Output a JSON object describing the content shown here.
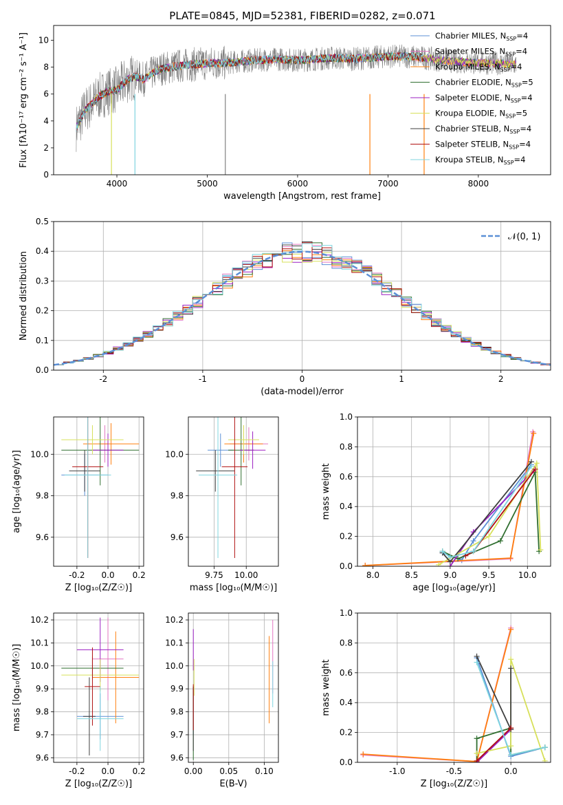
{
  "figure_title": "PLATE=0845, MJD=52381, FIBERID=0282, z=0.071",
  "colors": {
    "chabrier_miles": "#5b8fd6",
    "salpeter_miles": "#e377c2",
    "kroupa_miles": "#ff7f0e",
    "chabrier_elodie": "#2f6e2f",
    "salpeter_elodie": "#9b1fc2",
    "kroupa_elodie": "#d7e05a",
    "chabrier_stelib": "#3f3f3f",
    "salpeter_stelib": "#b01010",
    "kroupa_stelib": "#7fd5df",
    "data": "#808080",
    "normal": "#5b8fd6"
  },
  "chart_data": [
    {
      "type": "line",
      "id": "spectrum",
      "title": "PLATE=0845, MJD=52381, FIBERID=0282, z=0.071",
      "xlabel": "wavelength [Angstrom, rest frame]",
      "ylabel": "Flux [fλ10⁻¹⁷ erg cm⁻² s⁻¹ A⁻¹]",
      "xlim": [
        3300,
        8800
      ],
      "ylim": [
        0,
        11.1
      ],
      "xticks": [
        4000,
        5000,
        6000,
        7000,
        8000
      ],
      "yticks": [
        0,
        2,
        4,
        6,
        8,
        10
      ],
      "legend_position": "right",
      "legend": [
        {
          "label": "Chabrier MILES, N",
          "sub": "SSP",
          "tail": "=4",
          "color_key": "chabrier_miles"
        },
        {
          "label": "Salpeter MILES, N",
          "sub": "SSP",
          "tail": "=4",
          "color_key": "salpeter_miles"
        },
        {
          "label": "Kroupa MILES, N",
          "sub": "SSP",
          "tail": "=4",
          "color_key": "kroupa_miles"
        },
        {
          "label": "Chabrier ELODIE, N",
          "sub": "SSP",
          "tail": "=5",
          "color_key": "chabrier_elodie"
        },
        {
          "label": "Salpeter ELODIE, N",
          "sub": "SSP",
          "tail": "=4",
          "color_key": "salpeter_elodie"
        },
        {
          "label": "Kroupa ELODIE, N",
          "sub": "SSP",
          "tail": "=5",
          "color_key": "kroupa_elodie"
        },
        {
          "label": "Chabrier STELIB, N",
          "sub": "SSP",
          "tail": "=4",
          "color_key": "chabrier_stelib"
        },
        {
          "label": "Salpeter STELIB, N",
          "sub": "SSP",
          "tail": "=4",
          "color_key": "salpeter_stelib"
        },
        {
          "label": "Kroupa STELIB, N",
          "sub": "SSP",
          "tail": "=4",
          "color_key": "kroupa_stelib"
        }
      ],
      "continuum": [
        [
          3550,
          3.5
        ],
        [
          3650,
          4.8
        ],
        [
          3800,
          5.8
        ],
        [
          3900,
          6.2
        ],
        [
          4000,
          6.3
        ],
        [
          4100,
          7.0
        ],
        [
          4200,
          7.3
        ],
        [
          4300,
          7.1
        ],
        [
          4400,
          7.6
        ],
        [
          4500,
          7.9
        ],
        [
          4700,
          8.1
        ],
        [
          5000,
          8.3
        ],
        [
          5200,
          8.3
        ],
        [
          5500,
          8.5
        ],
        [
          5800,
          8.6
        ],
        [
          6000,
          8.5
        ],
        [
          6200,
          8.6
        ],
        [
          6400,
          8.7
        ],
        [
          6600,
          8.6
        ],
        [
          6800,
          8.7
        ],
        [
          7000,
          8.8
        ],
        [
          7200,
          8.8
        ],
        [
          7400,
          8.7
        ],
        [
          7600,
          8.5
        ],
        [
          7800,
          8.4
        ],
        [
          8000,
          8.3
        ],
        [
          8200,
          8.3
        ],
        [
          8400,
          8.2
        ]
      ],
      "model_span": [
        3550,
        7400
      ],
      "model_end_drop": {
        "kroupa_miles": 6800,
        "kroupa_stelib": 4200
      }
    },
    {
      "type": "line",
      "id": "residual_histogram",
      "xlabel": "(data-model)/error",
      "ylabel": "Normed distribution",
      "xlim": [
        -2.5,
        2.5
      ],
      "ylim": [
        0,
        0.5
      ],
      "xticks": [
        -2,
        -1,
        0,
        1,
        2
      ],
      "yticks": [
        0,
        0.1,
        0.2,
        0.3,
        0.4,
        0.5
      ],
      "grid": true,
      "legend": [
        {
          "label": "𝒩(0, 1)",
          "color_key": "normal",
          "style": "dashed"
        }
      ],
      "legend_position": "top-right",
      "bin_width": 0.1
    },
    {
      "type": "scatter",
      "id": "age_vs_Z",
      "xlabel": "Z [log₁₀(Z/Z☉)]",
      "ylabel": "age  [log₁₀(age/yr)]",
      "xlim": [
        -0.35,
        0.23
      ],
      "ylim": [
        9.46,
        10.18
      ],
      "xticks": [
        -0.2,
        0.0,
        0.2
      ],
      "yticks": [
        9.6,
        9.8,
        10.0
      ],
      "grid": true,
      "points": [
        {
          "c": "chabrier_miles",
          "x": -0.15,
          "xe": 0.15,
          "y": 9.9,
          "ye": 0.1
        },
        {
          "c": "salpeter_miles",
          "x": -0.02,
          "xe": 0.02,
          "y": 10.05,
          "ye": 0.09
        },
        {
          "c": "kroupa_miles",
          "x": 0.02,
          "xe": 0.18,
          "y": 10.05,
          "ye": 0.1
        },
        {
          "c": "chabrier_elodie",
          "x": -0.05,
          "xe": 0.25,
          "y": 10.02,
          "ye": 0.17
        },
        {
          "c": "salpeter_elodie",
          "x": 0.0,
          "xe": 0.1,
          "y": 10.02,
          "ye": 0.08
        },
        {
          "c": "kroupa_elodie",
          "x": -0.1,
          "xe": 0.2,
          "y": 10.07,
          "ye": 0.07
        },
        {
          "c": "chabrier_stelib",
          "x": -0.15,
          "xe": 0.1,
          "y": 9.92,
          "ye": 0.1
        },
        {
          "c": "salpeter_stelib",
          "x": -0.13,
          "xe": 0.1,
          "y": 9.94,
          "ye": 0.44
        },
        {
          "c": "kroupa_stelib",
          "x": -0.13,
          "xe": 0.15,
          "y": 9.9,
          "ye": 0.4
        }
      ]
    },
    {
      "type": "scatter",
      "id": "age_vs_mass",
      "xlabel": "mass [log₁₀(M/M☉)]",
      "ylabel": "",
      "xlim": [
        9.55,
        10.25
      ],
      "ylim": [
        9.46,
        10.18
      ],
      "xticks": [
        9.75,
        10.0
      ],
      "yticks": [
        9.6,
        9.8,
        10.0
      ],
      "grid": true,
      "points": [
        {
          "c": "chabrier_miles",
          "x": 9.8,
          "xe": 0.1,
          "y": 10.02,
          "ye": 0.08
        },
        {
          "c": "salpeter_miles",
          "x": 10.02,
          "xe": 0.15,
          "y": 10.05,
          "ye": 0.08
        },
        {
          "c": "kroupa_miles",
          "x": 9.98,
          "xe": 0.15,
          "y": 10.05,
          "ye": 0.09
        },
        {
          "c": "chabrier_elodie",
          "x": 9.96,
          "xe": 0.1,
          "y": 10.02,
          "ye": 0.17
        },
        {
          "c": "salpeter_elodie",
          "x": 10.05,
          "xe": 0.1,
          "y": 10.02,
          "ye": 0.09
        },
        {
          "c": "kroupa_elodie",
          "x": 9.98,
          "xe": 0.12,
          "y": 10.07,
          "ye": 0.07
        },
        {
          "c": "chabrier_stelib",
          "x": 9.76,
          "xe": 0.15,
          "y": 9.92,
          "ye": 0.1
        },
        {
          "c": "salpeter_stelib",
          "x": 9.91,
          "xe": 0.1,
          "y": 9.94,
          "ye": 0.44
        },
        {
          "c": "kroupa_stelib",
          "x": 9.78,
          "xe": 0.15,
          "y": 9.9,
          "ye": 0.4
        }
      ]
    },
    {
      "type": "line",
      "id": "massweight_vs_age",
      "xlabel": "age  [log₁₀(age/yr)]",
      "ylabel": "mass weight",
      "xlim": [
        7.8,
        10.3
      ],
      "ylim": [
        0,
        1.0
      ],
      "xticks": [
        8.0,
        8.5,
        9.0,
        9.5,
        10.0
      ],
      "yticks": [
        0.0,
        0.2,
        0.4,
        0.6,
        0.8,
        1.0
      ],
      "grid": true,
      "series": [
        {
          "c": "chabrier_miles",
          "x": [
            8.9,
            9.15,
            9.3,
            10.05
          ],
          "y": [
            0.09,
            0.04,
            0.17,
            0.68
          ]
        },
        {
          "c": "salpeter_miles",
          "x": [
            7.9,
            9.78,
            10.07
          ],
          "y": [
            0.005,
            0.05,
            0.9
          ]
        },
        {
          "c": "kroupa_miles",
          "x": [
            7.9,
            9.78,
            10.08
          ],
          "y": [
            0.005,
            0.055,
            0.89
          ]
        },
        {
          "c": "chabrier_elodie",
          "x": [
            8.9,
            9.1,
            9.65,
            10.1,
            10.15
          ],
          "y": [
            0.1,
            0.05,
            0.17,
            0.63,
            0.1
          ]
        },
        {
          "c": "salpeter_elodie",
          "x": [
            9.0,
            9.3,
            10.08
          ],
          "y": [
            0.0,
            0.23,
            0.64
          ]
        },
        {
          "c": "kroupa_elodie",
          "x": [
            8.85,
            9.5,
            10.12,
            10.17
          ],
          "y": [
            0.01,
            0.2,
            0.69,
            0.11
          ]
        },
        {
          "c": "chabrier_stelib",
          "x": [
            8.9,
            9.0,
            10.05
          ],
          "y": [
            0.09,
            0.03,
            0.7
          ]
        },
        {
          "c": "salpeter_stelib",
          "x": [
            9.2,
            9.3,
            10.1
          ],
          "y": [
            0.07,
            0.1,
            0.65
          ]
        },
        {
          "c": "kroupa_stelib",
          "x": [
            8.9,
            9.0,
            9.3,
            10.05
          ],
          "y": [
            0.1,
            0.06,
            0.1,
            0.67
          ]
        }
      ]
    },
    {
      "type": "scatter",
      "id": "mass_vs_Z",
      "xlabel": "Z [log₁₀(Z/Z☉)]",
      "ylabel": "mass [log₁₀(M/M☉)]",
      "xlim": [
        -0.35,
        0.23
      ],
      "ylim": [
        9.58,
        10.23
      ],
      "xticks": [
        -0.2,
        0.0,
        0.2
      ],
      "yticks": [
        9.6,
        9.7,
        9.8,
        9.9,
        10.0,
        10.1,
        10.2
      ],
      "grid": true,
      "points": [
        {
          "c": "chabrier_miles",
          "x": -0.05,
          "xe": 0.15,
          "y": 9.78,
          "ye": 0.1
        },
        {
          "c": "salpeter_miles",
          "x": 0.0,
          "xe": 0.1,
          "y": 10.03,
          "ye": 0.18
        },
        {
          "c": "kroupa_miles",
          "x": 0.05,
          "xe": 0.15,
          "y": 9.95,
          "ye": 0.2
        },
        {
          "c": "chabrier_elodie",
          "x": -0.1,
          "xe": 0.2,
          "y": 9.99,
          "ye": 0.05
        },
        {
          "c": "salpeter_elodie",
          "x": -0.05,
          "xe": 0.15,
          "y": 10.07,
          "ye": 0.14
        },
        {
          "c": "kroupa_elodie",
          "x": -0.05,
          "xe": 0.25,
          "y": 9.96,
          "ye": 0.07
        },
        {
          "c": "chabrier_stelib",
          "x": -0.12,
          "xe": 0.04,
          "y": 9.78,
          "ye": 0.17
        },
        {
          "c": "salpeter_stelib",
          "x": -0.1,
          "xe": 0.05,
          "y": 9.91,
          "ye": 0.17
        },
        {
          "c": "kroupa_stelib",
          "x": -0.05,
          "xe": 0.15,
          "y": 9.77,
          "ye": 0.14
        }
      ]
    },
    {
      "type": "scatter",
      "id": "mass_vs_EBV",
      "xlabel": "E(B-V)",
      "ylabel": "",
      "xlim": [
        -0.007,
        0.12
      ],
      "ylim": [
        9.58,
        10.23
      ],
      "xticks": [
        0.0,
        0.05,
        0.1
      ],
      "yticks": [
        9.6,
        9.7,
        9.8,
        9.9,
        10.0,
        10.1,
        10.2
      ],
      "grid": true,
      "points": [
        {
          "c": "chabrier_miles",
          "x": 0.0,
          "y": 9.8,
          "ye": 0.1
        },
        {
          "c": "salpeter_miles",
          "x": 0.112,
          "y": 10.04,
          "ye": 0.16
        },
        {
          "c": "kroupa_miles",
          "x": 0.107,
          "y": 9.94,
          "ye": 0.19
        },
        {
          "c": "chabrier_elodie",
          "x": 0.0,
          "y": 9.75,
          "ye": 0.16
        },
        {
          "c": "salpeter_elodie",
          "x": 0.0,
          "y": 10.07,
          "ye": 0.09
        },
        {
          "c": "kroupa_elodie",
          "x": 0.001,
          "y": 9.95,
          "ye": 0.08
        },
        {
          "c": "chabrier_stelib",
          "x": 0.0,
          "y": 9.77,
          "ye": 0.14
        },
        {
          "c": "salpeter_stelib",
          "x": 0.0,
          "y": 9.82,
          "ye": 0.1
        },
        {
          "c": "kroupa_stelib",
          "x": 0.112,
          "y": 9.92,
          "ye": 0.1
        }
      ]
    },
    {
      "type": "line",
      "id": "massweight_vs_Z",
      "xlabel": "Z [log₁₀(Z/Z☉)]",
      "ylabel": "mass weight",
      "xlim": [
        -1.35,
        0.35
      ],
      "ylim": [
        0,
        1.0
      ],
      "xticks": [
        -1.0,
        -0.5,
        0.0
      ],
      "yticks": [
        0.0,
        0.2,
        0.4,
        0.6,
        0.8,
        1.0
      ],
      "grid": true,
      "series": [
        {
          "c": "chabrier_miles",
          "x": [
            -0.3,
            0.0,
            0.3
          ],
          "y": [
            0.7,
            0.04,
            0.1
          ]
        },
        {
          "c": "salpeter_miles",
          "x": [
            -1.3,
            -0.3,
            0.0
          ],
          "y": [
            0.05,
            0.005,
            0.9
          ]
        },
        {
          "c": "kroupa_miles",
          "x": [
            -1.3,
            -0.3,
            0.0
          ],
          "y": [
            0.055,
            0.005,
            0.89
          ]
        },
        {
          "c": "chabrier_elodie",
          "x": [
            -0.3,
            -0.3,
            0.0,
            0.0,
            0.3
          ],
          "y": [
            0.0,
            0.16,
            0.23,
            0.05,
            0.1
          ]
        },
        {
          "c": "salpeter_elodie",
          "x": [
            -0.3,
            0.0
          ],
          "y": [
            0.0,
            0.22
          ]
        },
        {
          "c": "kroupa_elodie",
          "x": [
            -0.3,
            0.0,
            0.0,
            0.3
          ],
          "y": [
            0.06,
            0.11,
            0.69,
            0.01
          ]
        },
        {
          "c": "chabrier_stelib",
          "x": [
            -0.3,
            0.0,
            0.0
          ],
          "y": [
            0.71,
            0.22,
            0.63
          ]
        },
        {
          "c": "salpeter_stelib",
          "x": [
            -0.3,
            0.0
          ],
          "y": [
            0.01,
            0.23
          ]
        },
        {
          "c": "kroupa_stelib",
          "x": [
            -0.3,
            0.0,
            0.3
          ],
          "y": [
            0.67,
            0.05,
            0.1
          ]
        }
      ]
    }
  ]
}
